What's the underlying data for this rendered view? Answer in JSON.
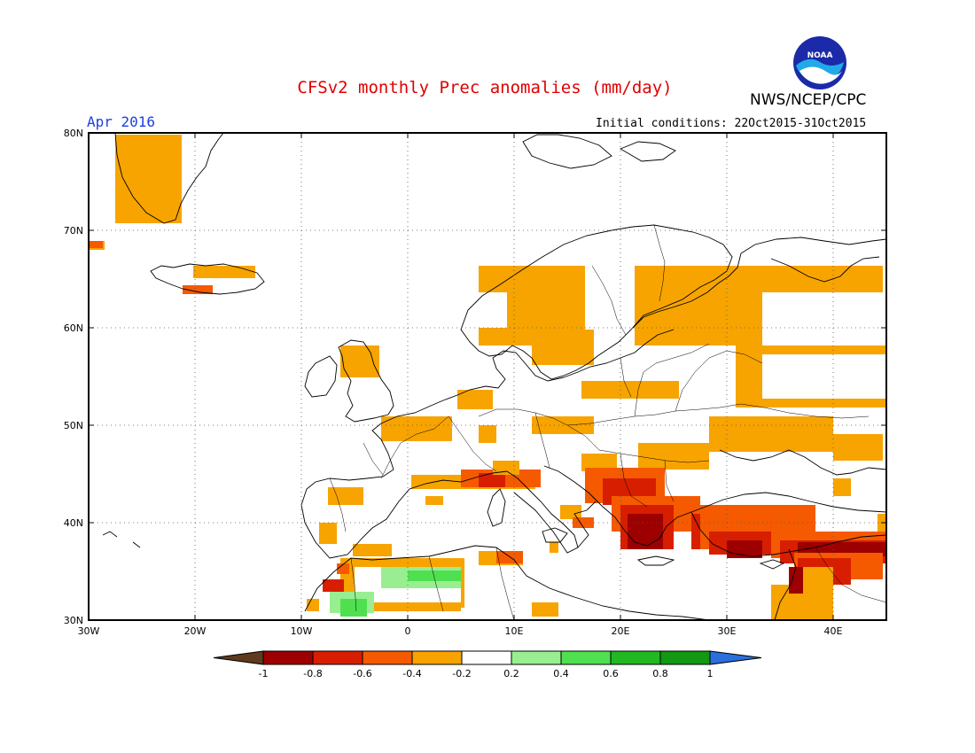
{
  "title": "CFSv2 monthly Prec anomalies (mm/day)",
  "agency": "NWS/NCEP/CPC",
  "logo_text": "NOAA",
  "valid_month": "Apr 2016",
  "initial_conditions": "Initial conditions: 22Oct2015-31Oct2015",
  "map": {
    "lon_range": [
      -30,
      45
    ],
    "lat_range": [
      30,
      80
    ],
    "lat_ticks": [
      {
        "value": 80,
        "label": "80N"
      },
      {
        "value": 70,
        "label": "70N"
      },
      {
        "value": 60,
        "label": "60N"
      },
      {
        "value": 50,
        "label": "50N"
      },
      {
        "value": 40,
        "label": "40N"
      },
      {
        "value": 30,
        "label": "30N"
      }
    ],
    "lon_ticks": [
      {
        "value": -30,
        "label": "30W"
      },
      {
        "value": -20,
        "label": "20W"
      },
      {
        "value": -10,
        "label": "10W"
      },
      {
        "value": 0,
        "label": "0"
      },
      {
        "value": 10,
        "label": "10E"
      },
      {
        "value": 20,
        "label": "20E"
      },
      {
        "value": 30,
        "label": "30E"
      },
      {
        "value": 40,
        "label": "40E"
      }
    ],
    "grid": true
  },
  "colorbar": {
    "labels": [
      "-1",
      "-0.8",
      "-0.6",
      "-0.4",
      "-0.2",
      "0.2",
      "0.4",
      "0.6",
      "0.8",
      "1"
    ],
    "colors": [
      "#9c0000",
      "#d81e00",
      "#f55a00",
      "#f7a400",
      "#ffffff",
      "#98ee90",
      "#4fe04f",
      "#22b822",
      "#129812"
    ],
    "under_color": "#5e3a1e",
    "over_color": "#2a6fdc"
  }
}
